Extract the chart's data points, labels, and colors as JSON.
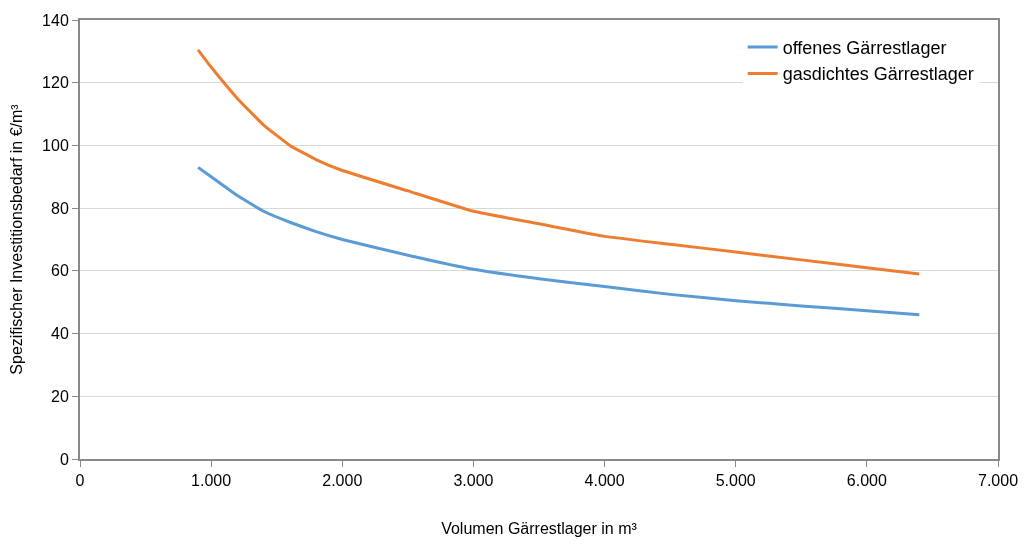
{
  "chart_data": {
    "type": "line",
    "xlabel": "Volumen Gärrestlager in m³",
    "ylabel": "Spezifischer Investitionsbedarf in €/m³",
    "x": [
      900,
      1000,
      1200,
      1400,
      1600,
      1800,
      2000,
      2500,
      3000,
      3500,
      4000,
      4500,
      5000,
      5500,
      6000,
      6400
    ],
    "series": [
      {
        "name": "offenes Gärrestlager",
        "color": "#5b9bd5",
        "values": [
          93,
          90,
          84,
          79,
          75.5,
          72.5,
          70,
          65,
          60.5,
          57.5,
          55,
          52.5,
          50.5,
          48.8,
          47.3,
          46
        ]
      },
      {
        "name": "gasdichtes Gärrestlager",
        "color": "#ed7d31",
        "values": [
          130.5,
          125,
          115,
          106.5,
          100,
          95.5,
          92,
          85.5,
          79,
          75,
          71,
          68.5,
          66,
          63.5,
          61,
          59
        ]
      }
    ],
    "xlim": [
      0,
      7000
    ],
    "ylim": [
      0,
      140
    ],
    "xticks": [
      {
        "value": 0,
        "label": "0"
      },
      {
        "value": 1000,
        "label": "1.000"
      },
      {
        "value": 2000,
        "label": "2.000"
      },
      {
        "value": 3000,
        "label": "3.000"
      },
      {
        "value": 4000,
        "label": "4.000"
      },
      {
        "value": 5000,
        "label": "5.000"
      },
      {
        "value": 6000,
        "label": "6.000"
      },
      {
        "value": 7000,
        "label": "7.000"
      }
    ],
    "yticks": [
      0,
      20,
      40,
      60,
      80,
      100,
      120,
      140
    ],
    "grid": "y",
    "legend": "top right",
    "marker": "none",
    "line_style": "solid"
  }
}
